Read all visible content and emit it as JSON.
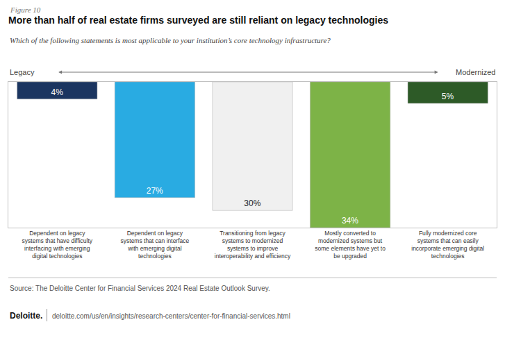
{
  "chart_data": {
    "type": "bar",
    "figure_label": "Figure 10",
    "title": "More than half of real estate firms surveyed are still reliant on legacy technologies",
    "subtitle": "Which of the following statements is most applicable to your institution’s core technology infrastructure?",
    "categories": [
      "Dependent on legacy\nsystems that have difficulty\ninterfacing with emerging\ndigital technologies",
      "Dependent on legacy\nsystems that can interface\nwith emerging digital\ntechnologies",
      "Transitioning from legacy\nsystems to modernized\nsystems to improve\ninteroperability and efficiency",
      "Mostly converted to\nmodernized systems but\nsome elements have yet to\nbe upgraded",
      "Fully modernized core\nsystems that can easily\nincorporate emerging digital\ntechnologies"
    ],
    "values": [
      4,
      27,
      30,
      34,
      5
    ],
    "value_labels": [
      "4%",
      "27%",
      "30%",
      "34%",
      "5%"
    ],
    "colors": [
      "#1b3560",
      "#29abe2",
      "#f0f0f0",
      "#7db347",
      "#2d5a27"
    ],
    "data_labels": true,
    "ylim": [
      0,
      34
    ],
    "tick_labels": "x",
    "grid": false,
    "legacy_label": "Legacy",
    "modernized_label": "Modernized",
    "source": "Source: The Deloitte Center for Financial Services 2024 Real Estate Outlook Survey.",
    "footer_brand": "Deloitte.",
    "footer_url": "deloitte.com/us/en/insights/research-centers/center-for-financial-services.html"
  }
}
